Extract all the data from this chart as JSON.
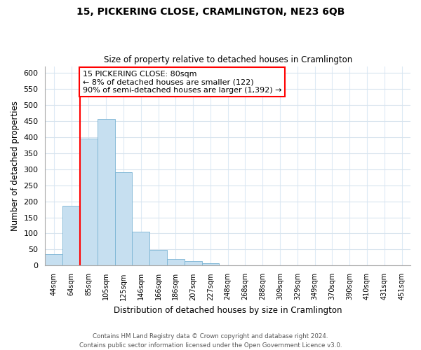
{
  "title": "15, PICKERING CLOSE, CRAMLINGTON, NE23 6QB",
  "subtitle": "Size of property relative to detached houses in Cramlington",
  "xlabel": "Distribution of detached houses by size in Cramlington",
  "ylabel": "Number of detached properties",
  "footer_line1": "Contains HM Land Registry data © Crown copyright and database right 2024.",
  "footer_line2": "Contains public sector information licensed under the Open Government Licence v3.0.",
  "bin_labels": [
    "44sqm",
    "64sqm",
    "85sqm",
    "105sqm",
    "125sqm",
    "146sqm",
    "166sqm",
    "186sqm",
    "207sqm",
    "227sqm",
    "248sqm",
    "268sqm",
    "288sqm",
    "309sqm",
    "329sqm",
    "349sqm",
    "370sqm",
    "390sqm",
    "410sqm",
    "431sqm",
    "451sqm"
  ],
  "bar_heights": [
    35,
    185,
    395,
    455,
    290,
    105,
    48,
    20,
    15,
    8,
    2,
    1,
    1,
    0,
    0,
    0,
    0,
    0,
    0,
    0,
    0
  ],
  "bar_color": "#c6dff0",
  "bar_edge_color": "#7ab4d4",
  "bar_width": 1.0,
  "ylim": [
    0,
    620
  ],
  "yticks": [
    0,
    50,
    100,
    150,
    200,
    250,
    300,
    350,
    400,
    450,
    500,
    550,
    600
  ],
  "red_line_x": 2.0,
  "annotation_title": "15 PICKERING CLOSE: 80sqm",
  "annotation_line2": "← 8% of detached houses are smaller (122)",
  "annotation_line3": "90% of semi-detached houses are larger (1,392) →",
  "background_color": "#ffffff",
  "grid_color": "#d8e4ee",
  "grid_color_x": "#ddeaf5"
}
